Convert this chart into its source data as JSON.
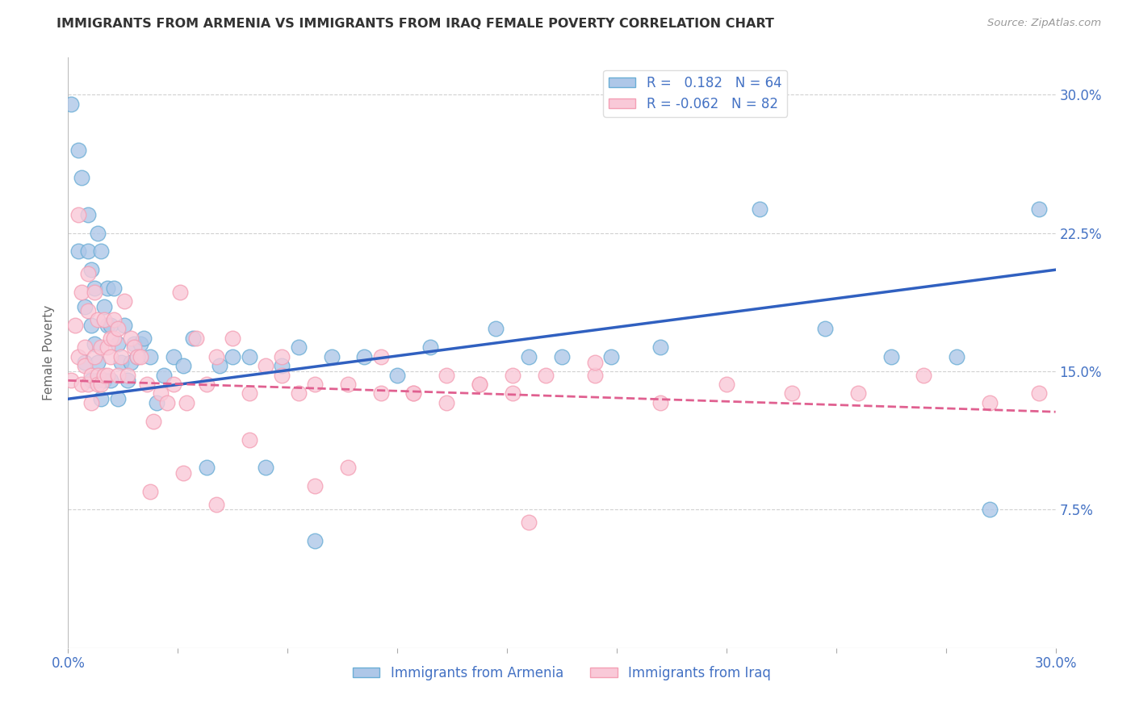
{
  "title": "IMMIGRANTS FROM ARMENIA VS IMMIGRANTS FROM IRAQ FEMALE POVERTY CORRELATION CHART",
  "source": "Source: ZipAtlas.com",
  "ylabel": "Female Poverty",
  "ytick_labels": [
    "7.5%",
    "15.0%",
    "22.5%",
    "30.0%"
  ],
  "ytick_values": [
    0.075,
    0.15,
    0.225,
    0.3
  ],
  "xlim": [
    0.0,
    0.3
  ],
  "ylim": [
    0.0,
    0.32
  ],
  "armenia_color": "#6baed6",
  "armenia_face": "#aec7e8",
  "iraq_color": "#f4a0b5",
  "iraq_face": "#f9c9d8",
  "line_armenia": "#3060c0",
  "line_iraq": "#e06090",
  "R_armenia": 0.182,
  "N_armenia": 64,
  "R_iraq": -0.062,
  "N_iraq": 82,
  "legend_label_armenia": "Immigrants from Armenia",
  "legend_label_iraq": "Immigrants from Iraq",
  "bg_color": "#ffffff",
  "grid_color": "#cccccc",
  "title_color": "#333333",
  "axis_label_color": "#4472c4",
  "armenia_x": [
    0.001,
    0.003,
    0.003,
    0.004,
    0.005,
    0.005,
    0.006,
    0.006,
    0.007,
    0.007,
    0.007,
    0.008,
    0.008,
    0.009,
    0.009,
    0.009,
    0.01,
    0.01,
    0.011,
    0.011,
    0.012,
    0.012,
    0.013,
    0.013,
    0.014,
    0.015,
    0.015,
    0.016,
    0.017,
    0.018,
    0.019,
    0.02,
    0.021,
    0.022,
    0.023,
    0.025,
    0.027,
    0.029,
    0.032,
    0.035,
    0.038,
    0.042,
    0.046,
    0.05,
    0.055,
    0.06,
    0.065,
    0.07,
    0.075,
    0.08,
    0.09,
    0.1,
    0.11,
    0.13,
    0.14,
    0.15,
    0.165,
    0.18,
    0.21,
    0.23,
    0.25,
    0.27,
    0.28,
    0.295
  ],
  "armenia_y": [
    0.295,
    0.27,
    0.215,
    0.255,
    0.185,
    0.155,
    0.235,
    0.215,
    0.145,
    0.175,
    0.205,
    0.195,
    0.165,
    0.145,
    0.225,
    0.155,
    0.135,
    0.215,
    0.185,
    0.145,
    0.175,
    0.195,
    0.145,
    0.175,
    0.195,
    0.135,
    0.165,
    0.155,
    0.175,
    0.145,
    0.155,
    0.165,
    0.158,
    0.165,
    0.168,
    0.158,
    0.133,
    0.148,
    0.158,
    0.153,
    0.168,
    0.098,
    0.153,
    0.158,
    0.158,
    0.098,
    0.153,
    0.163,
    0.058,
    0.158,
    0.158,
    0.148,
    0.163,
    0.173,
    0.158,
    0.158,
    0.158,
    0.163,
    0.238,
    0.173,
    0.158,
    0.158,
    0.075,
    0.238
  ],
  "iraq_x": [
    0.001,
    0.002,
    0.003,
    0.003,
    0.004,
    0.004,
    0.005,
    0.005,
    0.006,
    0.006,
    0.006,
    0.007,
    0.007,
    0.008,
    0.008,
    0.009,
    0.009,
    0.009,
    0.01,
    0.01,
    0.011,
    0.011,
    0.012,
    0.012,
    0.013,
    0.013,
    0.014,
    0.014,
    0.015,
    0.015,
    0.016,
    0.017,
    0.018,
    0.019,
    0.02,
    0.021,
    0.022,
    0.024,
    0.026,
    0.028,
    0.03,
    0.032,
    0.034,
    0.036,
    0.039,
    0.042,
    0.045,
    0.05,
    0.055,
    0.06,
    0.065,
    0.07,
    0.075,
    0.085,
    0.095,
    0.105,
    0.115,
    0.125,
    0.135,
    0.145,
    0.16,
    0.18,
    0.2,
    0.22,
    0.24,
    0.26,
    0.28,
    0.295,
    0.14,
    0.16,
    0.025,
    0.035,
    0.045,
    0.055,
    0.065,
    0.075,
    0.085,
    0.095,
    0.105,
    0.115,
    0.125,
    0.135
  ],
  "iraq_y": [
    0.145,
    0.175,
    0.158,
    0.235,
    0.143,
    0.193,
    0.163,
    0.153,
    0.203,
    0.143,
    0.183,
    0.148,
    0.133,
    0.158,
    0.193,
    0.148,
    0.178,
    0.143,
    0.143,
    0.163,
    0.178,
    0.148,
    0.163,
    0.148,
    0.168,
    0.158,
    0.178,
    0.168,
    0.148,
    0.173,
    0.158,
    0.188,
    0.148,
    0.168,
    0.163,
    0.158,
    0.158,
    0.143,
    0.123,
    0.138,
    0.133,
    0.143,
    0.193,
    0.133,
    0.168,
    0.143,
    0.158,
    0.168,
    0.138,
    0.153,
    0.148,
    0.138,
    0.143,
    0.143,
    0.138,
    0.138,
    0.133,
    0.143,
    0.138,
    0.148,
    0.148,
    0.133,
    0.143,
    0.138,
    0.138,
    0.148,
    0.133,
    0.138,
    0.068,
    0.155,
    0.085,
    0.095,
    0.078,
    0.113,
    0.158,
    0.088,
    0.098,
    0.158,
    0.138,
    0.148,
    0.143,
    0.148
  ]
}
